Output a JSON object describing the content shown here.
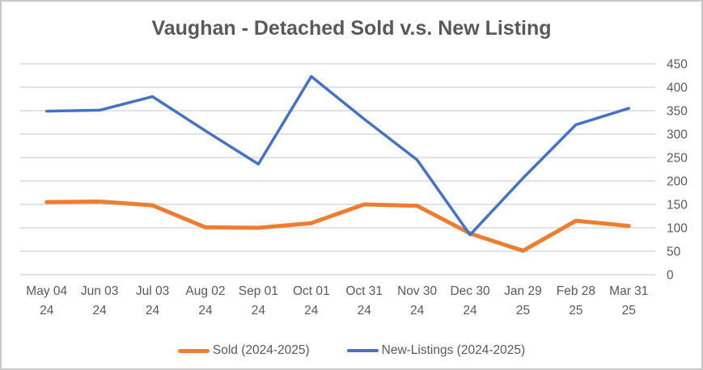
{
  "chart_data": {
    "type": "line",
    "title": "Vaughan - Detached Sold v.s. New Listing",
    "categories": [
      [
        "May 04",
        "24"
      ],
      [
        "Jun 03",
        "24"
      ],
      [
        "Jul 03",
        "24"
      ],
      [
        "Aug 02",
        "24"
      ],
      [
        "Sep 01",
        "24"
      ],
      [
        "Oct 01",
        "24"
      ],
      [
        "Oct 31",
        "24"
      ],
      [
        "Nov 30",
        "24"
      ],
      [
        "Dec 30",
        "24"
      ],
      [
        "Jan 29",
        "25"
      ],
      [
        "Feb 28",
        "25"
      ],
      [
        "Mar 31",
        "25"
      ]
    ],
    "series": [
      {
        "id": "sold",
        "name": "Sold (2024-2025)",
        "color": "#ED7D31",
        "width": 5,
        "values": [
          155,
          156,
          148,
          101,
          100,
          110,
          150,
          147,
          88,
          51,
          115,
          104
        ]
      },
      {
        "id": "new-listings",
        "name": "New-Listings (2024-2025)",
        "color": "#4472C4",
        "width": 3.5,
        "values": [
          349,
          351,
          380,
          307,
          236,
          423,
          332,
          245,
          85,
          206,
          320,
          355
        ]
      }
    ],
    "ylim": [
      0,
      450
    ],
    "ytick_step": 50,
    "yticks": [
      0,
      50,
      100,
      150,
      200,
      250,
      300,
      350,
      400,
      450
    ],
    "y_axis_side": "right",
    "grid": true,
    "legend_position": "bottom",
    "xlabel": "",
    "ylabel": ""
  },
  "colors": {
    "title": "#595959",
    "axis_labels": "#595959",
    "gridline": "#D9D9D9",
    "border": "#C8C8C8",
    "background": "#FFFFFF"
  }
}
